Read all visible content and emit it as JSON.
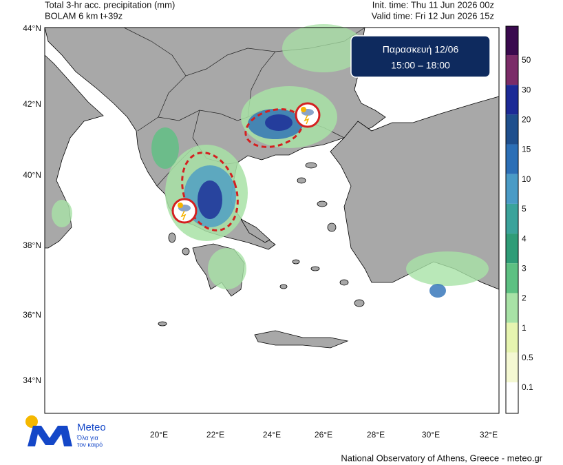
{
  "header": {
    "title": "Total 3-hr acc. precipitation (mm)",
    "model": "BOLAM 6 km t+39z",
    "init_time": "Init. time: Thu 11 Jun 2026 00z",
    "valid_time": "Valid time: Fri 12 Jun 2026 15z"
  },
  "info_box": {
    "day": "Παρασκευή 12/06",
    "time": "15:00 – 18:00"
  },
  "axes": {
    "lat_labels": [
      "44°N",
      "42°N",
      "40°N",
      "38°N",
      "36°N",
      "34°N"
    ],
    "lon_labels": [
      "20°E",
      "22°E",
      "24°E",
      "26°E",
      "28°E",
      "30°E",
      "32°E"
    ]
  },
  "colorbar": {
    "labels": [
      "50",
      "30",
      "20",
      "15",
      "10",
      "5",
      "4",
      "3",
      "2",
      "1",
      "0.5",
      "0.1"
    ],
    "colors": [
      "#3a0a4e",
      "#7b2c68",
      "#1c2a96",
      "#1f4f8d",
      "#2c6fb6",
      "#4a9bc6",
      "#3ba39b",
      "#2f9c77",
      "#5dc082",
      "#a8e2a6",
      "#e6f4b0",
      "#f4f8d2",
      "#ffffff"
    ]
  },
  "logo": {
    "name": "Meteo",
    "tagline_1": "Όλα για",
    "tagline_2": "τον καιρό"
  },
  "footer": {
    "credit": "National Observatory of Athens, Greece - meteo.gr"
  }
}
